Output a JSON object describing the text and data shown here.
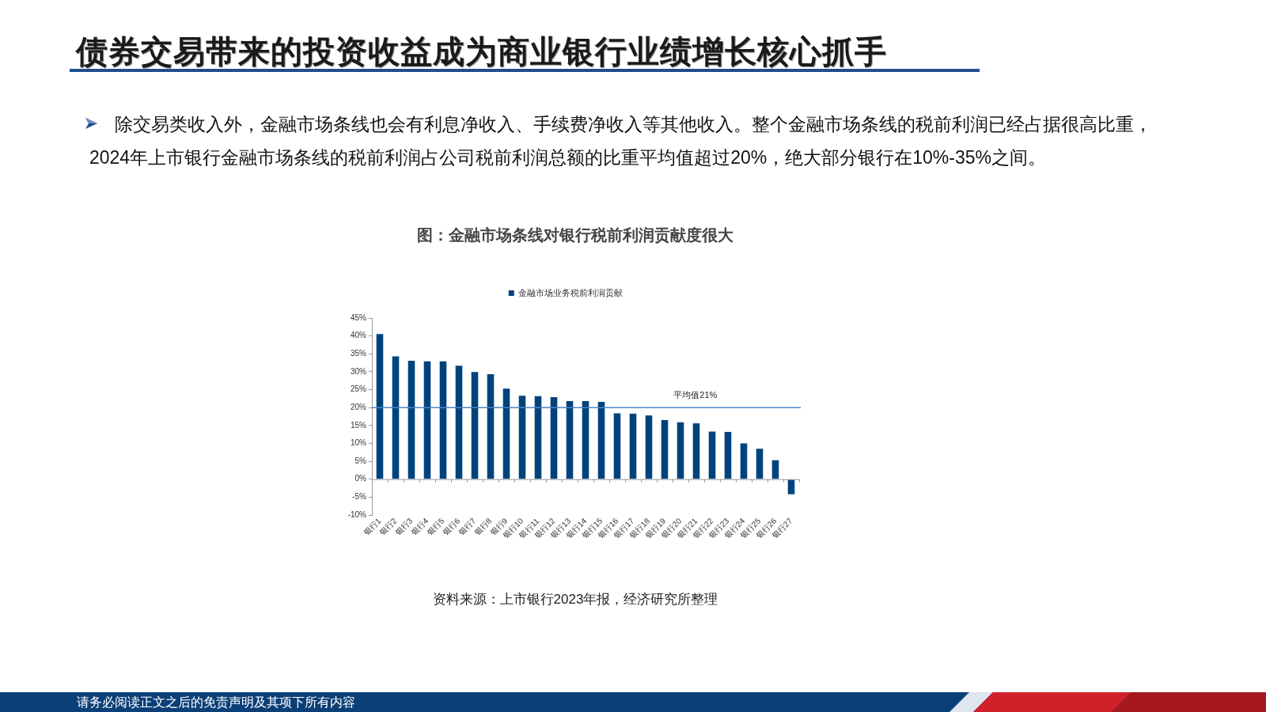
{
  "chart_data": {
    "type": "bar",
    "title": "债券交易带来的投资收益成为商业银行业绩增长核心抓手",
    "subtitle": "图：金融市场条线对银行税前利润贡献度很大",
    "categories": [
      "银行1",
      "银行2",
      "银行3",
      "银行4",
      "银行5",
      "银行6",
      "银行7",
      "银行8",
      "银行9",
      "银行10",
      "银行11",
      "银行12",
      "银行13",
      "银行14",
      "银行15",
      "银行16",
      "银行17",
      "银行18",
      "银行19",
      "银行20",
      "银行21",
      "银行22",
      "银行23",
      "银行24",
      "银行25",
      "银行26",
      "银行27"
    ],
    "series": [
      {
        "name": "金融市场业务税前利润贡献",
        "color": "#00437c",
        "values": [
          40.5,
          34.3,
          33.1,
          32.9,
          32.9,
          31.7,
          29.9,
          29.3,
          25.3,
          23.3,
          23.2,
          22.9,
          21.8,
          21.8,
          21.6,
          18.4,
          18.3,
          17.8,
          16.5,
          15.9,
          15.6,
          13.3,
          13.2,
          10.0,
          8.5,
          5.3,
          -4.2
        ]
      }
    ],
    "ylim": [
      -10,
      45
    ],
    "yticks": [
      {
        "value": -10,
        "label": "-10%"
      },
      {
        "value": -5,
        "label": "-5%"
      },
      {
        "value": 0,
        "label": "0%"
      },
      {
        "value": 5,
        "label": "5%"
      },
      {
        "value": 10,
        "label": "10%"
      },
      {
        "value": 15,
        "label": "15%"
      },
      {
        "value": 20,
        "label": "20%"
      },
      {
        "value": 25,
        "label": "25%"
      },
      {
        "value": 30,
        "label": "30%"
      },
      {
        "value": 35,
        "label": "35%"
      },
      {
        "value": 40,
        "label": "40%"
      },
      {
        "value": 45,
        "label": "45%"
      }
    ],
    "legend": "top",
    "ref_lines": [
      {
        "axis": "y",
        "value": 20,
        "label": "平均值21%",
        "color": "#4a86c8"
      }
    ],
    "annotations": [
      "除交易类收入外，金融市场条线也会有利息净收入、手续费净收入等其他收入。整个金融市场条线的税前利润已经占据很高比重，2024年上市银行金融市场条线的税前利润占公司税前利润总额的比重平均值超过20%，绝大部分银行在10%-35%之间。",
      "资料来源：上市银行2023年报，经济研究所整理",
      "请务必阅读正文之后的免责声明及其项下所有内容"
    ]
  }
}
